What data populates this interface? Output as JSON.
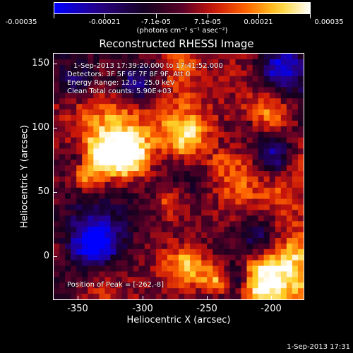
{
  "colorbar": {
    "labels": [
      "-0.00035",
      "-0.00021",
      "-7.1e-05",
      "7.1e-05",
      "0.00021",
      "0.00035"
    ],
    "units": "(photons cm⁻² s⁻¹ asec⁻²)"
  },
  "title": "Reconstructed RHESSI Image",
  "annotations": {
    "time_range": "1-Sep-2013 17:39:20.000 to 17:41:52.000",
    "detectors": "Detectors: 3F 5F 6F 7F 8F 9F, Att 0",
    "energy_range": "Energy Range: 12.0 - 25.0 keV",
    "algorithm": "Clean     Total counts: 5.90E+03",
    "peak": "Position of Peak = [-262,-8]"
  },
  "axes": {
    "xlabel": "Heliocentric X (arcsec)",
    "ylabel": "Heliocentric Y (arcsec)",
    "xticks": [
      "-350",
      "-300",
      "-250",
      "-200"
    ],
    "yticks": [
      "150",
      "100",
      "50",
      "0"
    ]
  },
  "footer": "1-Sep-2013 17:31",
  "colors": {
    "background": "#000000",
    "foreground": "#ffffff"
  }
}
